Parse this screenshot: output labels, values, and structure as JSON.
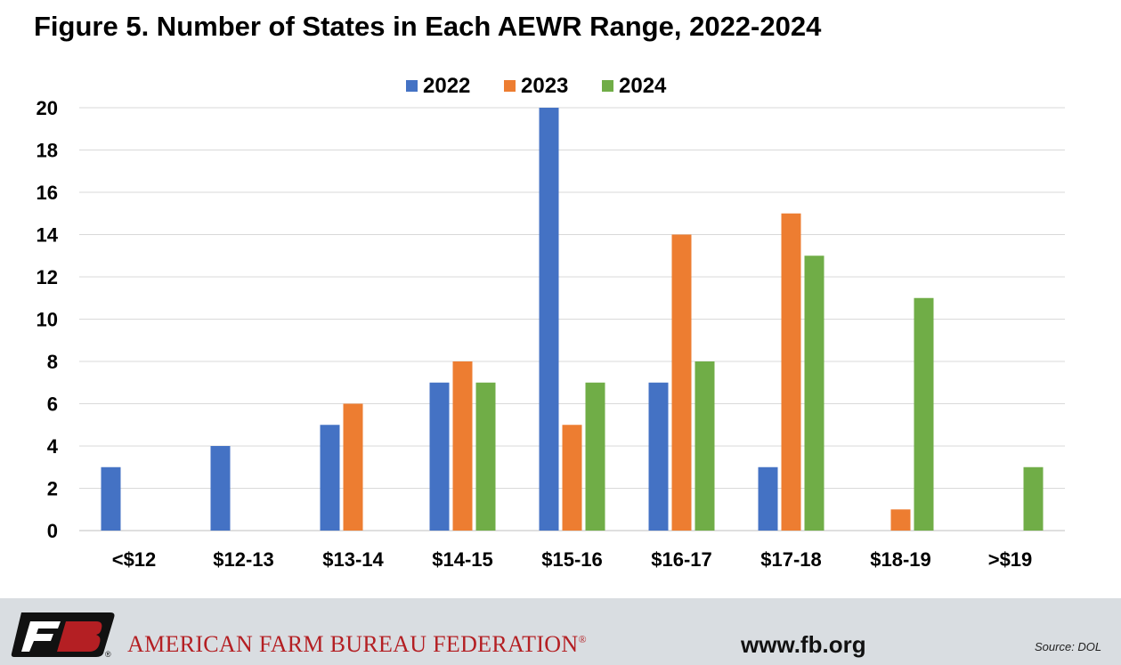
{
  "chart_data": {
    "type": "bar",
    "title": "Figure 5. Number of States in Each AEWR Range, 2022-2024",
    "categories": [
      "<$12",
      "$12-13",
      "$13-14",
      "$14-15",
      "$15-16",
      "$16-17",
      "$17-18",
      "$18-19",
      ">$19"
    ],
    "series": [
      {
        "name": "2022",
        "color": "#4472c4",
        "values": [
          3,
          4,
          5,
          7,
          20,
          7,
          3,
          0,
          0
        ]
      },
      {
        "name": "2023",
        "color": "#ed7d31",
        "values": [
          0,
          0,
          6,
          8,
          5,
          14,
          15,
          1,
          0
        ]
      },
      {
        "name": "2024",
        "color": "#70ad47",
        "values": [
          0,
          0,
          0,
          7,
          7,
          8,
          13,
          11,
          3
        ]
      }
    ],
    "yticks": [
      "0",
      "2",
      "4",
      "6",
      "8",
      "10",
      "12",
      "14",
      "16",
      "18",
      "20"
    ],
    "ylim": [
      0,
      20
    ],
    "grid": true,
    "legend_position": "top-center"
  },
  "footer": {
    "organization": "AMERICAN FARM BUREAU FEDERATION",
    "registered_mark": "®",
    "website": "www.fb.org",
    "source": "Source: DOL",
    "logo_text": "FB",
    "logo_color": "#b41f23"
  }
}
